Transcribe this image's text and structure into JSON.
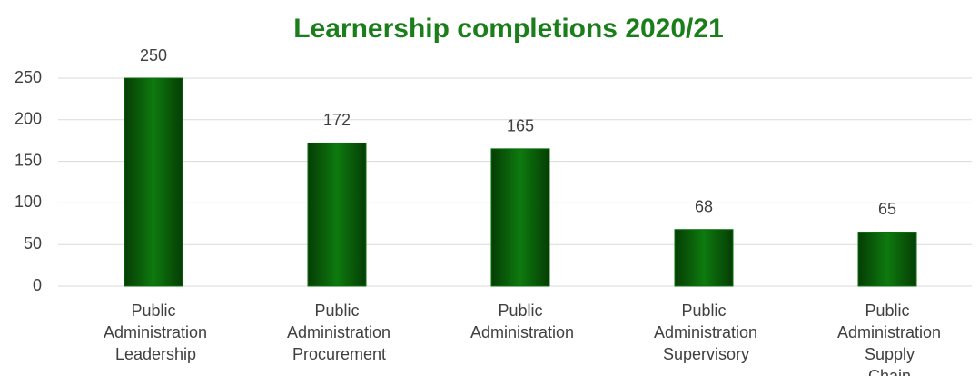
{
  "chart_data": {
    "type": "bar",
    "title": "Learnership completions 2020/21",
    "categories": [
      "Public Administration Leadership",
      "Public Administration Procurement",
      "Public Administration",
      "Public Administration Supervisory",
      "Public Administration Supply Chain"
    ],
    "values": [
      250,
      172,
      165,
      68,
      65
    ],
    "color": "#0b6e0b",
    "ylim": [
      0,
      250
    ],
    "yticks": [
      0,
      50,
      100,
      150,
      200,
      250
    ],
    "grid": true
  }
}
